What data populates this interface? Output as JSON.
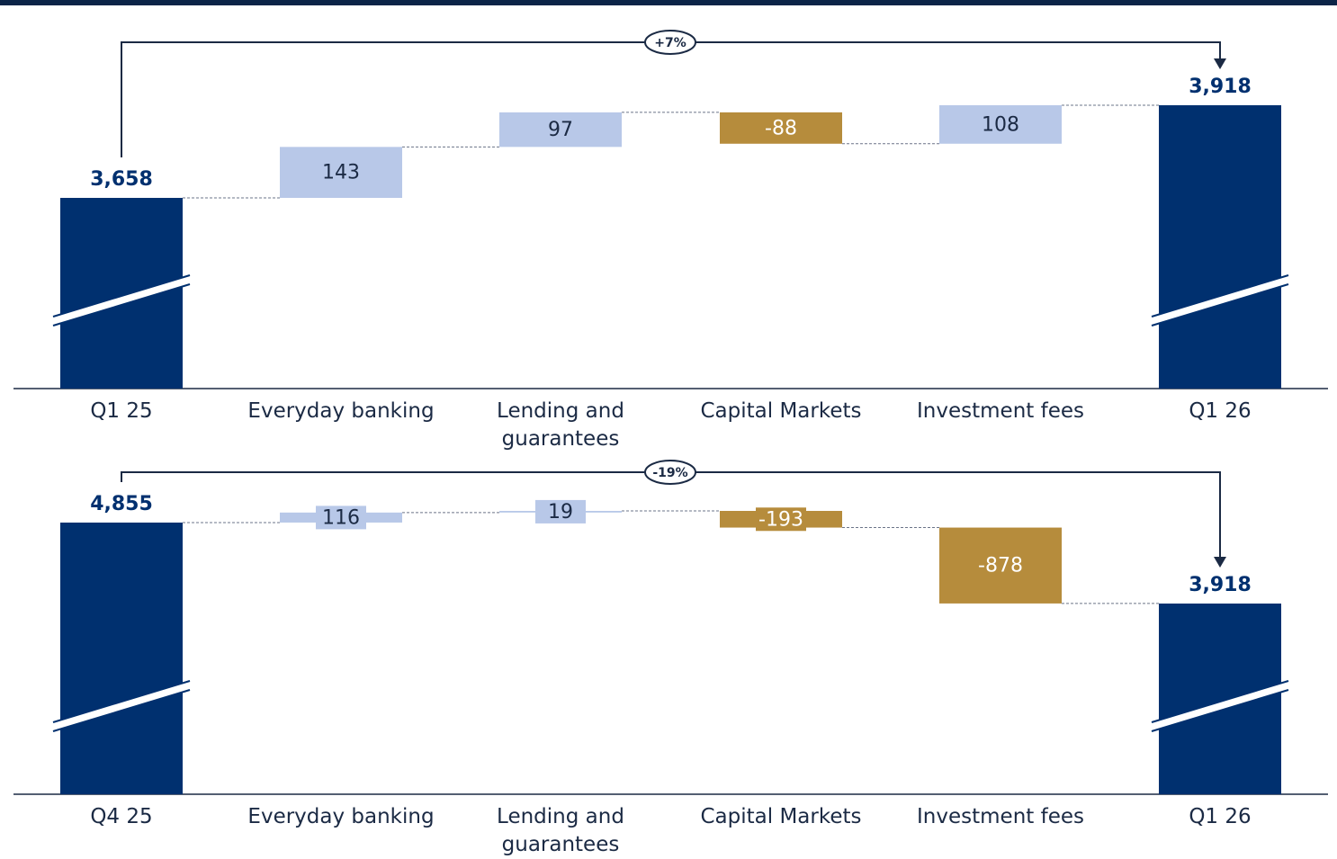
{
  "chart_data": [
    {
      "type": "waterfall",
      "categories": [
        "Q1 25",
        "Everyday banking",
        "Lending and guarantees",
        "Capital Markets",
        "Investment fees",
        "Q1 26"
      ],
      "values": [
        3658,
        143,
        97,
        -88,
        108,
        3918
      ],
      "value_labels": [
        "3,658",
        "143",
        "97",
        "-88",
        "108",
        "3,918"
      ],
      "measures": [
        "absolute",
        "relative",
        "relative",
        "relative",
        "relative",
        "total"
      ],
      "change_label": "+7%",
      "colors": {
        "total": "#00306f",
        "increase": "#b8c8e8",
        "decrease": "#b68c3c"
      }
    },
    {
      "type": "waterfall",
      "categories": [
        "Q4 25",
        "Everyday banking",
        "Lending and guarantees",
        "Capital Markets",
        "Investment fees",
        "Q1 26"
      ],
      "values": [
        4855,
        116,
        19,
        -193,
        -878,
        3918
      ],
      "value_labels": [
        "4,855",
        "116",
        "19",
        "-193",
        "-878",
        "3,918"
      ],
      "measures": [
        "absolute",
        "relative",
        "relative",
        "relative",
        "relative",
        "total"
      ],
      "change_label": "-19%",
      "colors": {
        "total": "#00306f",
        "increase": "#b8c8e8",
        "decrease": "#b68c3c"
      }
    }
  ]
}
